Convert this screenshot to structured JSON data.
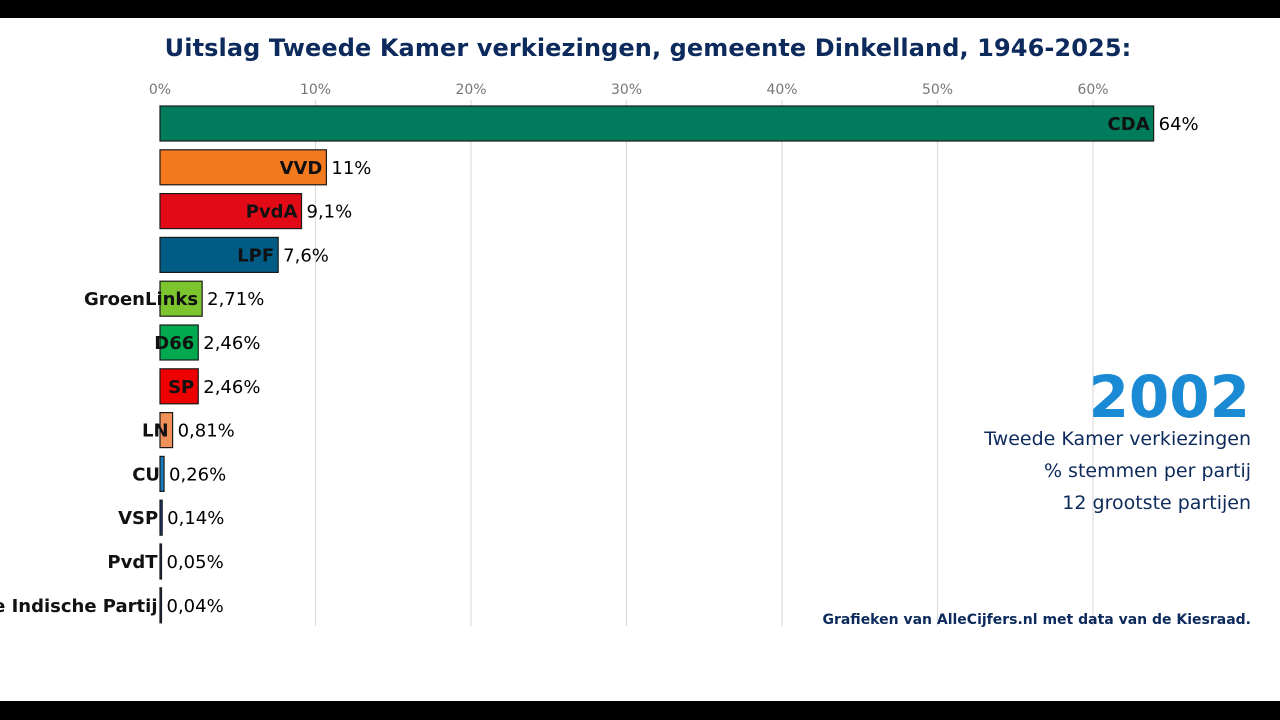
{
  "title": "Uitslag Tweede Kamer verkiezingen, gemeente Dinkelland, 1946-2025:",
  "year": "2002",
  "subtitle_lines": [
    "Tweede Kamer verkiezingen",
    "% stemmen per partij",
    "12 grootste partijen"
  ],
  "source": "Grafieken van AlleCijfers.nl met data van de Kiesraad.",
  "chart_data": {
    "type": "bar",
    "orientation": "horizontal",
    "title": "Uitslag Tweede Kamer verkiezingen, gemeente Dinkelland, 1946-2025:",
    "xlim": [
      0,
      66
    ],
    "x_ticks": [
      0,
      10,
      20,
      30,
      40,
      50,
      60
    ],
    "x_tick_labels": [
      "0%",
      "10%",
      "20%",
      "30%",
      "40%",
      "50%",
      "60%"
    ],
    "axis_position": "top",
    "grid": true,
    "categories": [
      "CDA",
      "VVD",
      "PvdA",
      "LPF",
      "GroenLinks",
      "D66",
      "SP",
      "LN",
      "CU",
      "VSP",
      "PvdT",
      "De Indische Partij"
    ],
    "values": [
      63.9,
      10.7,
      9.1,
      7.6,
      2.71,
      2.46,
      2.46,
      0.81,
      0.26,
      0.14,
      0.05,
      0.04
    ],
    "value_labels": [
      "64%",
      "11%",
      "9,1%",
      "7,6%",
      "2,71%",
      "2,46%",
      "2,46%",
      "0,81%",
      "0,26%",
      "0,14%",
      "0,05%",
      "0,04%"
    ],
    "colors": [
      "#007c5d",
      "#f47a20",
      "#e30a17",
      "#005b85",
      "#7dc52e",
      "#00a94f",
      "#ee0000",
      "#f0915a",
      "#1a7fc1",
      "#1a3a8a",
      "#1a3a6a",
      "#1a3a6a"
    ]
  }
}
